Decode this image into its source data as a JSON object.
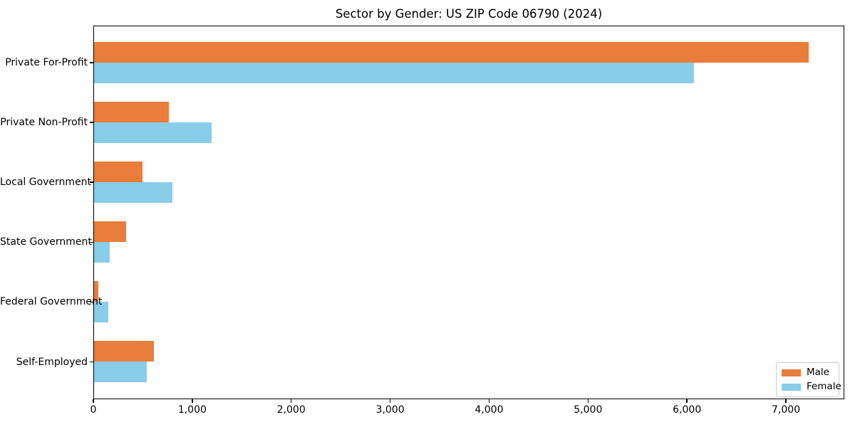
{
  "chart_data": {
    "type": "bar",
    "orientation": "horizontal",
    "title": "Sector by Gender: US ZIP Code 06790 (2024)",
    "categories": [
      "Private For-Profit",
      "Private Non-Profit",
      "Local Government",
      "State Government",
      "Federal Government",
      "Self-Employed"
    ],
    "series": [
      {
        "name": "Male",
        "color": "#E87D3C",
        "values": [
          7220,
          755,
          490,
          325,
          45,
          605
        ]
      },
      {
        "name": "Female",
        "color": "#89CDE8",
        "values": [
          6060,
          1190,
          790,
          160,
          145,
          535
        ]
      }
    ],
    "xlim": [
      0,
      7590
    ],
    "xticks": [
      {
        "value": 0,
        "label": "0"
      },
      {
        "value": 1000,
        "label": "1,000"
      },
      {
        "value": 2000,
        "label": "2,000"
      },
      {
        "value": 3000,
        "label": "3,000"
      },
      {
        "value": 4000,
        "label": "4,000"
      },
      {
        "value": 5000,
        "label": "5,000"
      },
      {
        "value": 6000,
        "label": "6,000"
      },
      {
        "value": 7000,
        "label": "7,000"
      }
    ],
    "ylabel": "",
    "xlabel": "",
    "grid": false,
    "legend": {
      "position": "lower-right",
      "entries": [
        "Male",
        "Female"
      ]
    },
    "colors": {
      "background": "#FFFFFF",
      "spine": "#000000",
      "legend_border": "#CCCCCC"
    }
  }
}
